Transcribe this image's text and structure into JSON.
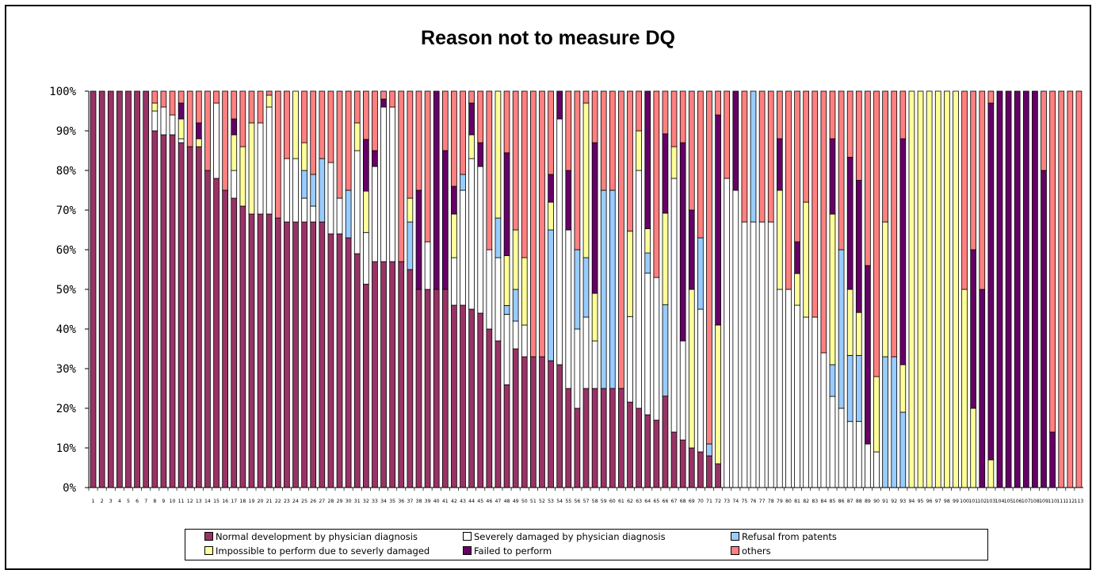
{
  "chart_data": {
    "type": "bar",
    "stacked": "percent",
    "title": "Reason not to measure DQ",
    "xlabel": "",
    "ylabel": "",
    "ylim": [
      0,
      100
    ],
    "yticks": [
      "0%",
      "10%",
      "20%",
      "30%",
      "40%",
      "50%",
      "60%",
      "70%",
      "80%",
      "90%",
      "100%"
    ],
    "categories": [
      "1",
      "2",
      "3",
      "4",
      "5",
      "6",
      "7",
      "8",
      "9",
      "10",
      "11",
      "12",
      "13",
      "14",
      "15",
      "16",
      "17",
      "18",
      "19",
      "20",
      "21",
      "22",
      "23",
      "24",
      "25",
      "26",
      "27",
      "28",
      "29",
      "30",
      "31",
      "32",
      "33",
      "34",
      "35",
      "36",
      "37",
      "38",
      "39",
      "40",
      "41",
      "42",
      "43",
      "44",
      "45",
      "46",
      "47",
      "48",
      "49",
      "50",
      "51",
      "52",
      "53",
      "54",
      "55",
      "56",
      "57",
      "58",
      "59",
      "60",
      "61",
      "62",
      "63",
      "64",
      "65",
      "66",
      "67",
      "68",
      "69",
      "70",
      "71",
      "72",
      "73",
      "74",
      "75",
      "76",
      "77",
      "78",
      "79",
      "80",
      "81",
      "82",
      "83",
      "84",
      "85",
      "86",
      "87",
      "88",
      "89",
      "90",
      "91",
      "92",
      "93",
      "94",
      "95",
      "96",
      "97",
      "98",
      "99",
      "100",
      "101",
      "102",
      "103",
      "104",
      "105",
      "106",
      "107",
      "108",
      "109",
      "110",
      "111",
      "112",
      "113"
    ],
    "grid": false,
    "legend_position": "bottom",
    "series": [
      {
        "name": "Normal development by physician diagnosis",
        "color": "#993366",
        "values": [
          100,
          100,
          100,
          100,
          100,
          100,
          100,
          90,
          89,
          89,
          87,
          86,
          86,
          80,
          78,
          75,
          73,
          71,
          69,
          69,
          69,
          68,
          67,
          67,
          67,
          67,
          67,
          64,
          64,
          63,
          59,
          59,
          57,
          57,
          57,
          57,
          55,
          50,
          50,
          50,
          50,
          46,
          46,
          45,
          44,
          40,
          37,
          35,
          35,
          33,
          33,
          33,
          32,
          31,
          25,
          25,
          25,
          25,
          25,
          25,
          25,
          22,
          20,
          18,
          17,
          15,
          14,
          12,
          10,
          9,
          8,
          6,
          0,
          0,
          0,
          0,
          0,
          0,
          0,
          0,
          0,
          0,
          0,
          0,
          0,
          0,
          0,
          0,
          0,
          0,
          0,
          0,
          0,
          0,
          0,
          0,
          0,
          0,
          0,
          0,
          0,
          0,
          0,
          0,
          0,
          0,
          0,
          0,
          0,
          0,
          0,
          0,
          0
        ]
      },
      {
        "name": "Severely damaged by physician diagnosis",
        "color": "#ffffff",
        "values": [
          0,
          0,
          0,
          0,
          0,
          0,
          0,
          5,
          7,
          5,
          1,
          0,
          0,
          0,
          19,
          0,
          7,
          0,
          0,
          23,
          27,
          0,
          16,
          16,
          6,
          4,
          0,
          18,
          9,
          0,
          26,
          15,
          24,
          39,
          39,
          0,
          0,
          0,
          12,
          0,
          0,
          12,
          29,
          38,
          37,
          20,
          21,
          24,
          7,
          8,
          0,
          0,
          0,
          62,
          40,
          25,
          18,
          12,
          0,
          0,
          0,
          22,
          60,
          35,
          36,
          0,
          64,
          25,
          0,
          36,
          0,
          0,
          78,
          75,
          67,
          67,
          67,
          67,
          50,
          50,
          46,
          43,
          43,
          34,
          23,
          20,
          20,
          20,
          11,
          9,
          0,
          0,
          0,
          0,
          0,
          0,
          0,
          0,
          0,
          0,
          0,
          0,
          0,
          0,
          0,
          0,
          0,
          0,
          0,
          0,
          0,
          0,
          0
        ]
      },
      {
        "name": "Refusal from patents",
        "color": "#99ccff",
        "values": [
          0,
          0,
          0,
          0,
          0,
          0,
          0,
          0,
          0,
          0,
          0,
          0,
          0,
          0,
          0,
          0,
          0,
          0,
          0,
          0,
          0,
          0,
          0,
          0,
          7,
          8,
          16,
          0,
          0,
          12,
          0,
          0,
          0,
          0,
          0,
          0,
          12,
          0,
          0,
          0,
          0,
          0,
          4,
          0,
          0,
          0,
          10,
          3,
          8,
          0,
          0,
          0,
          33,
          0,
          0,
          25,
          15,
          0,
          50,
          50,
          0,
          0,
          0,
          5,
          0,
          15,
          0,
          0,
          0,
          18,
          3,
          0,
          0,
          0,
          0,
          33,
          0,
          0,
          0,
          0,
          0,
          0,
          0,
          0,
          8,
          40,
          20,
          20,
          0,
          0,
          33,
          33,
          19,
          0,
          0,
          0,
          0,
          0,
          0,
          0,
          0,
          0,
          0,
          0,
          0,
          0,
          0,
          0,
          0,
          0,
          0,
          0,
          0
        ]
      },
      {
        "name": "Impossible to perform due to severly damaged",
        "color": "#ffff99",
        "values": [
          0,
          0,
          0,
          0,
          0,
          0,
          0,
          2,
          0,
          0,
          5,
          0,
          2,
          0,
          0,
          0,
          9,
          15,
          23,
          0,
          3,
          0,
          0,
          17,
          7,
          0,
          0,
          0,
          0,
          0,
          7,
          12,
          0,
          0,
          0,
          0,
          6,
          0,
          0,
          0,
          0,
          11,
          0,
          6,
          0,
          0,
          32,
          17,
          15,
          17,
          0,
          0,
          7,
          0,
          0,
          0,
          39,
          12,
          0,
          0,
          0,
          22,
          10,
          6,
          0,
          15,
          8,
          0,
          40,
          0,
          0,
          35,
          0,
          0,
          0,
          0,
          0,
          0,
          25,
          0,
          8,
          29,
          0,
          0,
          38,
          0,
          20,
          13,
          0,
          19,
          34,
          0,
          12,
          100,
          100,
          100,
          100,
          100,
          50,
          50,
          20,
          0,
          7,
          0,
          0,
          0,
          0,
          0,
          0,
          0,
          0,
          0,
          0
        ]
      },
      {
        "name": "Failed to perform",
        "color": "#660066",
        "values": [
          0,
          0,
          0,
          0,
          0,
          0,
          0,
          0,
          0,
          0,
          4,
          0,
          4,
          0,
          0,
          0,
          4,
          0,
          0,
          0,
          0,
          0,
          0,
          0,
          0,
          0,
          0,
          0,
          0,
          0,
          0,
          15,
          4,
          2,
          0,
          0,
          0,
          25,
          0,
          50,
          35,
          7,
          0,
          8,
          6,
          0,
          0,
          35,
          0,
          0,
          0,
          0,
          7,
          7,
          15,
          0,
          0,
          38,
          0,
          0,
          0,
          0,
          0,
          34,
          0,
          13,
          0,
          50,
          20,
          0,
          0,
          53,
          0,
          25,
          0,
          0,
          0,
          0,
          13,
          0,
          8,
          0,
          0,
          0,
          19,
          0,
          40,
          40,
          45,
          0,
          0,
          0,
          57,
          0,
          0,
          0,
          0,
          0,
          0,
          0,
          40,
          50,
          90,
          100,
          100,
          100,
          100,
          100,
          80,
          14,
          0,
          0,
          0
        ]
      },
      {
        "name": "others",
        "color": "#ff8080",
        "values": [
          0,
          0,
          0,
          0,
          0,
          0,
          0,
          3,
          4,
          6,
          3,
          14,
          8,
          20,
          3,
          25,
          7,
          14,
          8,
          8,
          1,
          32,
          17,
          0,
          13,
          21,
          17,
          18,
          27,
          25,
          8,
          14,
          15,
          2,
          4,
          43,
          27,
          25,
          38,
          0,
          15,
          24,
          21,
          3,
          13,
          40,
          0,
          21,
          35,
          42,
          67,
          67,
          21,
          0,
          20,
          50,
          3,
          13,
          25,
          25,
          75,
          36,
          10,
          0,
          47,
          7,
          14,
          13,
          30,
          37,
          89,
          6,
          22,
          0,
          33,
          0,
          33,
          33,
          12,
          50,
          38,
          28,
          57,
          66,
          12,
          40,
          20,
          27,
          44,
          72,
          33,
          67,
          12,
          0,
          0,
          0,
          0,
          0,
          0,
          50,
          40,
          50,
          3,
          0,
          0,
          0,
          0,
          0,
          20,
          86,
          100,
          100,
          100
        ]
      }
    ]
  }
}
